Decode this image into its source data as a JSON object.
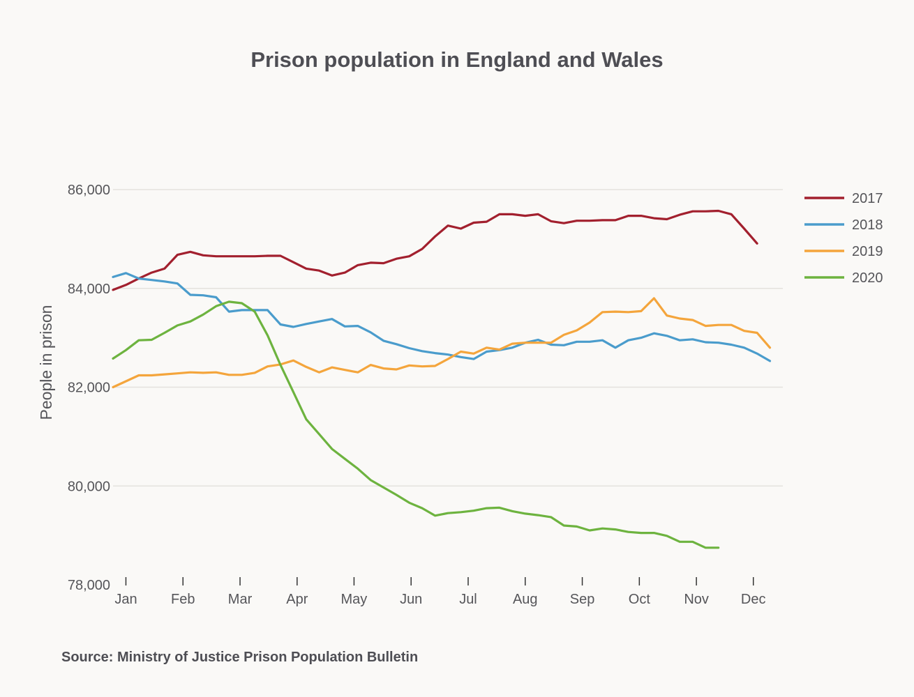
{
  "chart_data": {
    "type": "line",
    "title": "Prison population in England and Wales",
    "ylabel": "People in prison",
    "xlabel": "",
    "source": "Source: Ministry of Justice Prison Population Bulletin",
    "ylim": [
      78000,
      86000
    ],
    "xlim": [
      0,
      52
    ],
    "yticks": [
      {
        "value": 78000,
        "label": "78,000"
      },
      {
        "value": 80000,
        "label": "80,000"
      },
      {
        "value": 82000,
        "label": "82,000"
      },
      {
        "value": 84000,
        "label": "84,000"
      },
      {
        "value": 86000,
        "label": "86,000"
      }
    ],
    "xticks": [
      {
        "value": 1.0,
        "label": "Jan"
      },
      {
        "value": 5.43,
        "label": "Feb"
      },
      {
        "value": 9.86,
        "label": "Mar"
      },
      {
        "value": 14.29,
        "label": "Apr"
      },
      {
        "value": 18.71,
        "label": "May"
      },
      {
        "value": 23.14,
        "label": "Jun"
      },
      {
        "value": 27.57,
        "label": "Jul"
      },
      {
        "value": 32.0,
        "label": "Aug"
      },
      {
        "value": 36.43,
        "label": "Sep"
      },
      {
        "value": 40.86,
        "label": "Oct"
      },
      {
        "value": 45.29,
        "label": "Nov"
      },
      {
        "value": 49.71,
        "label": "Dec"
      }
    ],
    "grid": true,
    "legend_position": "right",
    "series": [
      {
        "name": "2017",
        "color": "#a2202e",
        "x_start": 0,
        "values": [
          83970,
          84070,
          84200,
          84320,
          84400,
          84680,
          84740,
          84670,
          84650,
          84650,
          84650,
          84650,
          84660,
          84660,
          84530,
          84400,
          84360,
          84260,
          84320,
          84470,
          84520,
          84510,
          84600,
          84650,
          84800,
          85050,
          85270,
          85210,
          85330,
          85350,
          85500,
          85500,
          85470,
          85500,
          85360,
          85320,
          85370,
          85370,
          85380,
          85380,
          85470,
          85470,
          85420,
          85400,
          85490,
          85560,
          85560,
          85570,
          85500,
          85210,
          84910
        ]
      },
      {
        "name": "2018",
        "color": "#4a9ccc",
        "x_start": 0,
        "values": [
          84230,
          84310,
          84200,
          84170,
          84140,
          84100,
          83870,
          83860,
          83820,
          83530,
          83560,
          83560,
          83560,
          83270,
          83220,
          83280,
          83330,
          83380,
          83230,
          83240,
          83110,
          82940,
          82870,
          82790,
          82730,
          82690,
          82660,
          82610,
          82570,
          82720,
          82750,
          82800,
          82900,
          82960,
          82860,
          82850,
          82920,
          82920,
          82950,
          82800,
          82950,
          83000,
          83090,
          83040,
          82950,
          82970,
          82910,
          82900,
          82860,
          82800,
          82680,
          82530
        ]
      },
      {
        "name": "2019",
        "color": "#f4a53c",
        "x_start": 0,
        "values": [
          82000,
          82120,
          82240,
          82240,
          82260,
          82280,
          82300,
          82290,
          82300,
          82250,
          82250,
          82290,
          82420,
          82460,
          82540,
          82410,
          82300,
          82400,
          82350,
          82300,
          82450,
          82380,
          82360,
          82440,
          82420,
          82430,
          82570,
          82720,
          82680,
          82800,
          82760,
          82880,
          82900,
          82900,
          82900,
          83060,
          83150,
          83310,
          83520,
          83530,
          83520,
          83540,
          83800,
          83450,
          83390,
          83360,
          83240,
          83260,
          83260,
          83140,
          83100,
          82800
        ]
      },
      {
        "name": "2020",
        "color": "#6db33f",
        "x_start": 0,
        "values": [
          82580,
          82750,
          82950,
          82960,
          83100,
          83250,
          83330,
          83470,
          83640,
          83730,
          83700,
          83530,
          83050,
          82450,
          81900,
          81350,
          81050,
          80750,
          80550,
          80350,
          80120,
          79970,
          79820,
          79660,
          79550,
          79400,
          79450,
          79470,
          79500,
          79550,
          79560,
          79490,
          79440,
          79410,
          79370,
          79200,
          79180,
          79100,
          79140,
          79120,
          79070,
          79050,
          79050,
          78990,
          78870,
          78870,
          78750,
          78750
        ]
      }
    ]
  }
}
